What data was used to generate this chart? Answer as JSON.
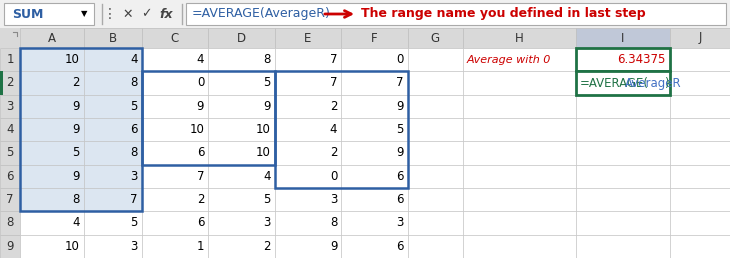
{
  "formula_bar_text": "=AVERAGE(AverageR)",
  "arrow_annotation": "The range name you defined in last step",
  "name_box": "SUM",
  "cell_data": [
    [
      10,
      4,
      4,
      8,
      7,
      0
    ],
    [
      2,
      8,
      0,
      5,
      7,
      7
    ],
    [
      9,
      5,
      9,
      9,
      2,
      9
    ],
    [
      9,
      6,
      10,
      10,
      4,
      5
    ],
    [
      5,
      8,
      6,
      10,
      2,
      9
    ],
    [
      9,
      3,
      7,
      4,
      0,
      6
    ],
    [
      8,
      7,
      2,
      5,
      3,
      6
    ],
    [
      4,
      5,
      6,
      3,
      8,
      3
    ],
    [
      10,
      3,
      1,
      2,
      9,
      6
    ]
  ],
  "col_headers": [
    "A",
    "B",
    "C",
    "D",
    "E",
    "F",
    "G",
    "H",
    "I",
    "J"
  ],
  "h1_label": "Average with 0",
  "i1_value": "6.34375",
  "bg_light_blue": "#dce6f1",
  "bg_white": "#ffffff",
  "bg_header": "#d9d9d9",
  "grid_color": "#c0c0c0",
  "blue_border_color": "#2e5fa3",
  "formula_color": "#4472c4",
  "red_color": "#cc0000",
  "green_border_color": "#1f7245",
  "selected_col_header_bg": "#c0c8d8",
  "toolbar_bg": "#f0f0f0",
  "namebox_blue": "#2e5fa3"
}
